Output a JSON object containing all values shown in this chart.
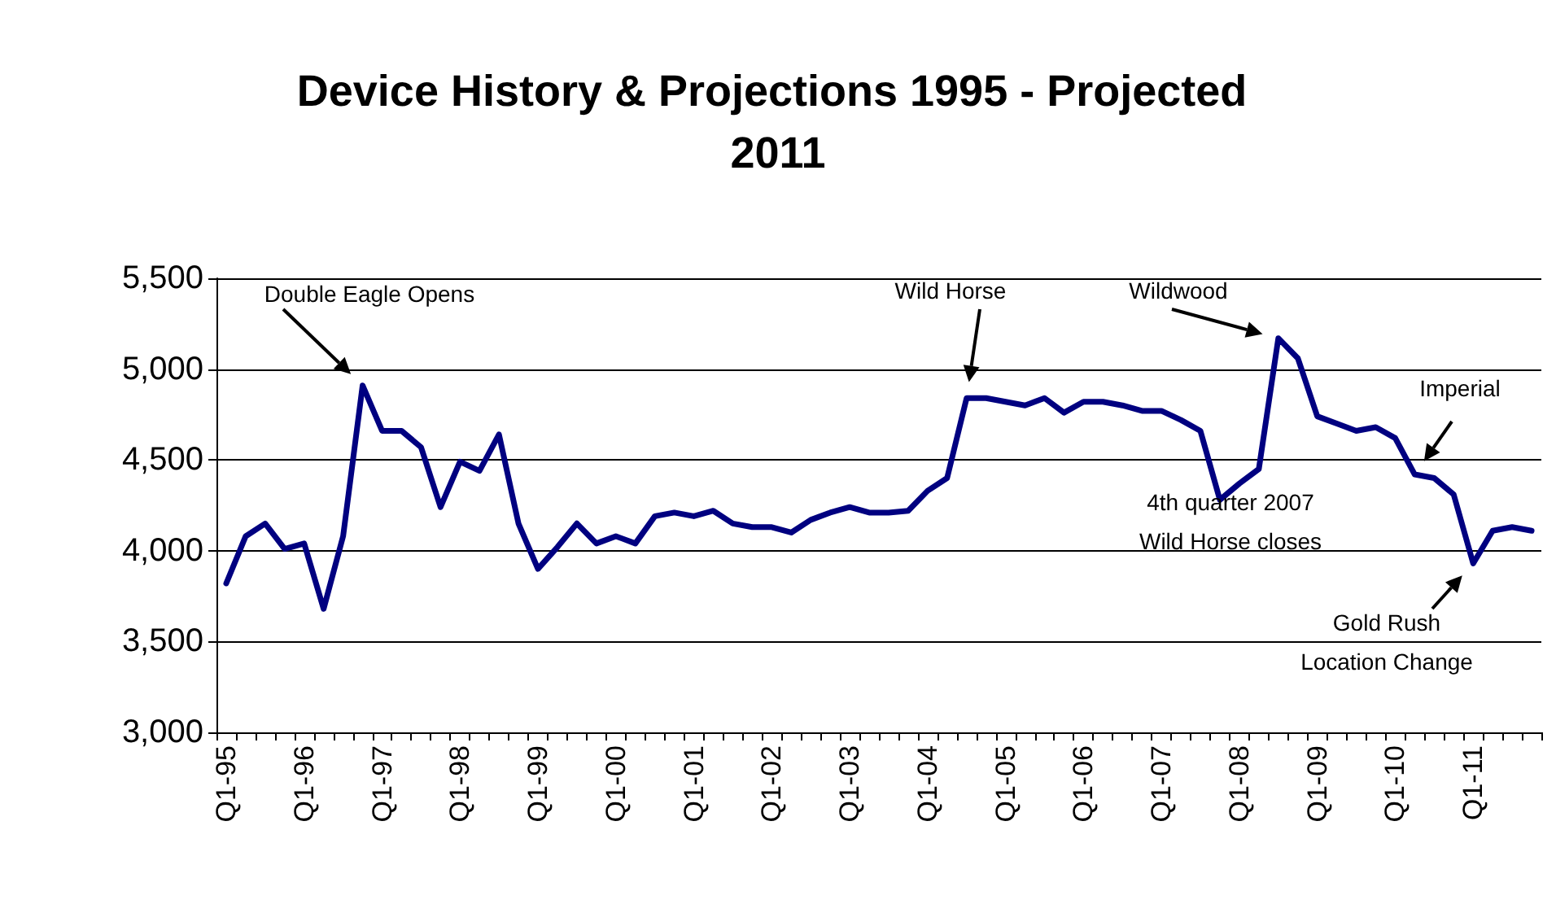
{
  "chart_data": {
    "type": "line",
    "title": "Device History & Projections 1995 - Projected 2011",
    "categories": [
      "Q1-95",
      null,
      null,
      null,
      "Q1-96",
      null,
      null,
      null,
      "Q1-97",
      null,
      null,
      null,
      "Q1-98",
      null,
      null,
      null,
      "Q1-99",
      null,
      null,
      null,
      "Q1-00",
      null,
      null,
      null,
      "Q1-01",
      null,
      null,
      null,
      "Q1-02",
      null,
      null,
      null,
      "Q1-03",
      null,
      null,
      null,
      "Q1-04",
      null,
      null,
      null,
      "Q1-05",
      null,
      null,
      null,
      "Q1-06",
      null,
      null,
      null,
      "Q1-07",
      null,
      null,
      null,
      "Q1-08",
      null,
      null,
      null,
      "Q1-09",
      null,
      null,
      null,
      "Q1-10",
      null,
      null,
      null,
      "Q1-11",
      null,
      null,
      null
    ],
    "series": [
      {
        "color": "#000080",
        "values": [
          3820,
          4080,
          4150,
          4010,
          4040,
          3680,
          4080,
          4910,
          4660,
          4660,
          4570,
          4240,
          4490,
          4440,
          4640,
          4150,
          3900,
          4020,
          4150,
          4040,
          4080,
          4040,
          4190,
          4210,
          4190,
          4220,
          4150,
          4130,
          4130,
          4100,
          4170,
          4210,
          4240,
          4210,
          4210,
          4220,
          4330,
          4400,
          4840,
          4840,
          4820,
          4800,
          4840,
          4760,
          4820,
          4820,
          4800,
          4770,
          4770,
          4720,
          4660,
          4280,
          4370,
          4450,
          5170,
          5060,
          4740,
          4700,
          4660,
          4680,
          4620,
          4420,
          4400,
          4310,
          3930,
          4110,
          4130,
          4110
        ]
      }
    ],
    "ylim": [
      3000,
      5500
    ],
    "yticks": [
      {
        "value": 3000,
        "label": "3,000"
      },
      {
        "value": 3500,
        "label": "3,500"
      },
      {
        "value": 4000,
        "label": "4,000"
      },
      {
        "value": 4500,
        "label": "4,500"
      },
      {
        "value": 5000,
        "label": "5,000"
      },
      {
        "value": 5500,
        "label": "5,500"
      }
    ],
    "grid": "y",
    "marker": "none",
    "line_style": "solid",
    "annotations": [
      "Double Eagle Opens",
      "Wild Horse",
      "Wildwood",
      "Imperial",
      "4th quarter 2007\nWild Horse closes",
      "Gold Rush\nLocation Change"
    ]
  }
}
